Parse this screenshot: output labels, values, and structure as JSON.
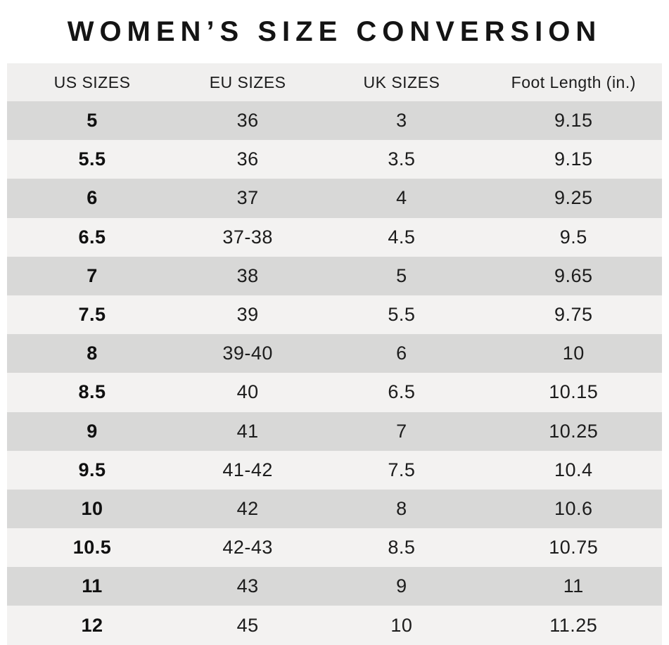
{
  "title": "WOMEN’S SIZE CONVERSION",
  "chart_data": {
    "type": "table",
    "title": "WOMEN’S SIZE CONVERSION",
    "columns": [
      "US SIZES",
      "EU SIZES",
      "UK SIZES",
      "Foot Length (in.)"
    ],
    "rows": [
      [
        "5",
        "36",
        "3",
        "9.15"
      ],
      [
        "5.5",
        "36",
        "3.5",
        "9.15"
      ],
      [
        "6",
        "37",
        "4",
        "9.25"
      ],
      [
        "6.5",
        "37-38",
        "4.5",
        "9.5"
      ],
      [
        "7",
        "38",
        "5",
        "9.65"
      ],
      [
        "7.5",
        "39",
        "5.5",
        "9.75"
      ],
      [
        "8",
        "39-40",
        "6",
        "10"
      ],
      [
        "8.5",
        "40",
        "6.5",
        "10.15"
      ],
      [
        "9",
        "41",
        "7",
        "10.25"
      ],
      [
        "9.5",
        "41-42",
        "7.5",
        "10.4"
      ],
      [
        "10",
        "42",
        "8",
        "10.6"
      ],
      [
        "10.5",
        "42-43",
        "8.5",
        "10.75"
      ],
      [
        "11",
        "43",
        "9",
        "11"
      ],
      [
        "12",
        "45",
        "10",
        "11.25"
      ]
    ]
  },
  "colors": {
    "header_bg": "#f0efee",
    "row_light": "#f3f2f1",
    "row_dark": "#d8d8d7",
    "text": "#1c1c1c"
  }
}
